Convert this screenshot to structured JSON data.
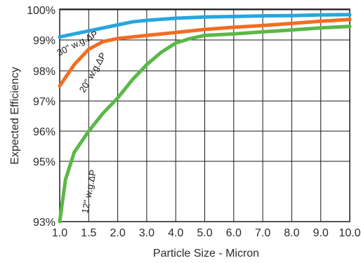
{
  "chart_data": {
    "type": "line",
    "xlabel": "Particle Size - Micron",
    "ylabel": "Expected Efficiency",
    "xlim": [
      1.0,
      10.0
    ],
    "ylim": [
      93,
      100
    ],
    "x_ticks": [
      "1.0",
      "1.5",
      "2.0",
      "3.0",
      "4.0",
      "5.0",
      "6.0",
      "7.0",
      "8.0",
      "9.0",
      "10.0"
    ],
    "y_ticks": [
      "100%",
      "99%",
      "98%",
      "97%",
      "96%",
      "95%",
      "93%"
    ],
    "grid": true,
    "x_scale": "piecewise-linear",
    "series": [
      {
        "name": "30\" w.g.ΔP",
        "color": "#27a6df",
        "x": [
          1.0,
          1.5,
          2.0,
          2.5,
          3.0,
          4.0,
          5.0,
          6.0,
          7.0,
          8.0,
          9.0,
          10.0
        ],
        "y": [
          99.1,
          99.3,
          99.5,
          99.6,
          99.65,
          99.72,
          99.76,
          99.78,
          99.8,
          99.81,
          99.83,
          99.84
        ]
      },
      {
        "name": "20\" w.g.ΔP",
        "color": "#f26d21",
        "x": [
          1.0,
          1.25,
          1.5,
          1.75,
          2.0,
          2.5,
          3.0,
          4.0,
          5.0,
          6.0,
          7.0,
          8.0,
          9.0,
          10.0
        ],
        "y": [
          97.5,
          98.2,
          98.7,
          98.95,
          99.05,
          99.1,
          99.15,
          99.25,
          99.35,
          99.42,
          99.48,
          99.55,
          99.62,
          99.68
        ]
      },
      {
        "name": "12\" w.g.ΔP",
        "color": "#5bb847",
        "x": [
          1.0,
          1.1,
          1.25,
          1.5,
          1.75,
          2.0,
          2.5,
          3.0,
          3.5,
          4.0,
          4.5,
          5.0,
          6.0,
          7.0,
          8.0,
          9.0,
          10.0
        ],
        "y": [
          93.0,
          94.4,
          95.3,
          96.0,
          96.6,
          97.1,
          97.7,
          98.2,
          98.6,
          98.9,
          99.05,
          99.15,
          99.2,
          99.27,
          99.33,
          99.4,
          99.45
        ]
      }
    ]
  }
}
